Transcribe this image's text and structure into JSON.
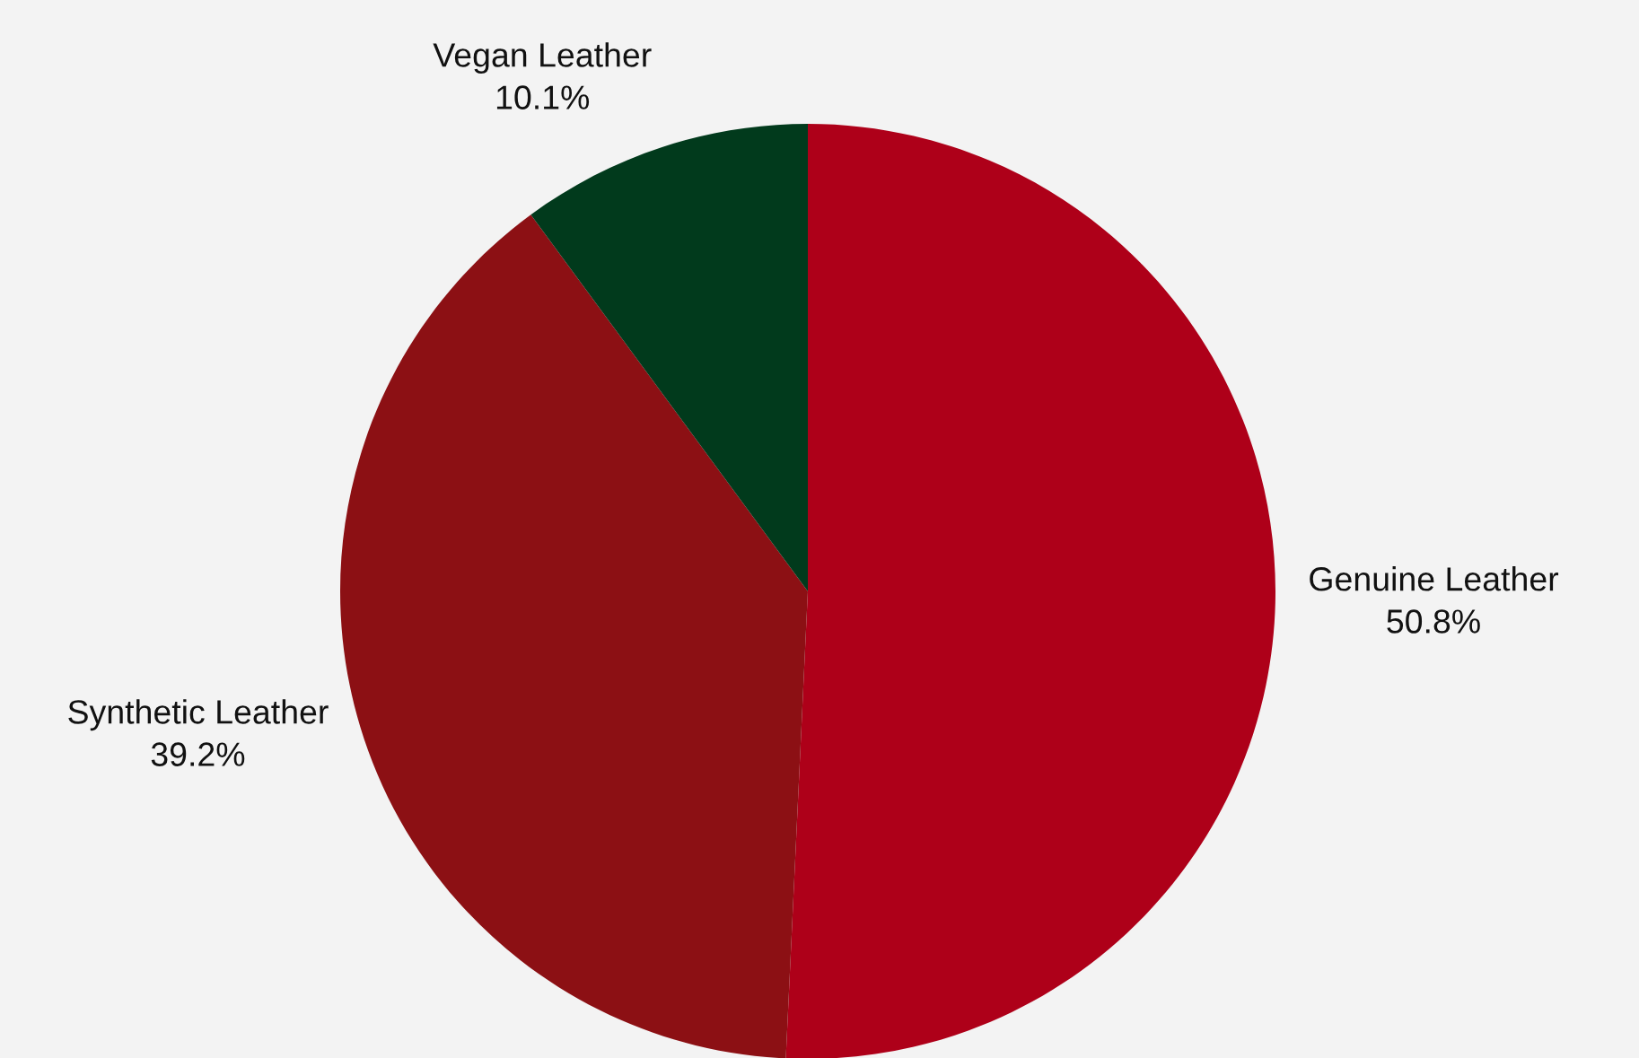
{
  "chart_data": {
    "type": "pie",
    "categories": [
      "Genuine Leather",
      "Synthetic Leather",
      "Vegan Leather"
    ],
    "values": [
      50.8,
      39.2,
      10.1
    ],
    "colors": [
      "#ae0019",
      "#8c1014",
      "#013a1c"
    ],
    "value_labels": [
      "50.8%",
      "39.2%",
      "10.1%"
    ]
  }
}
